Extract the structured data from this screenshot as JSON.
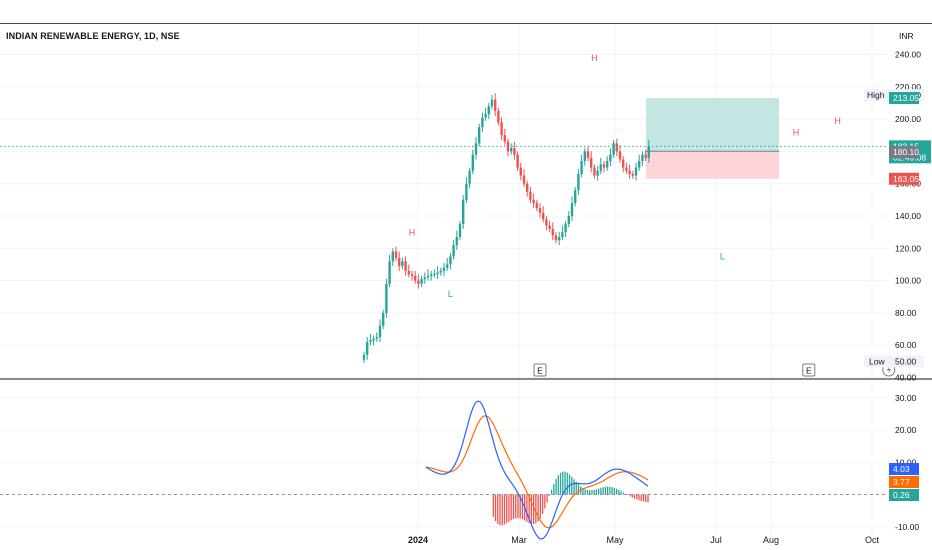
{
  "title": "INDIAN RENEWABLE ENERGY, 1D, NSE",
  "currency": "INR",
  "colors": {
    "up": "#26a69a",
    "down": "#ef5350",
    "macd": "#2962ff",
    "signal": "#ff6d00",
    "grid": "#f0f3fa",
    "profit_zone": "#b2dfdb",
    "loss_zone": "#ffcdd2"
  },
  "chart_data": [
    {
      "type": "candlestick",
      "ylim": [
        40,
        250
      ],
      "yticks": [
        "240.00",
        "220.00",
        "200.00",
        "180.00",
        "160.00",
        "140.00",
        "120.00",
        "100.00",
        "80.00",
        "60.00",
        "40.00"
      ],
      "high": {
        "label": "High",
        "value": "214.80"
      },
      "low": {
        "label": "Low",
        "value": "50.00"
      },
      "last_price": {
        "value": "183.15",
        "countdown": "02:49:08"
      },
      "position": {
        "target": "213.05",
        "entry": "180.10",
        "stop": "163.05"
      },
      "pattern_labels": [
        {
          "text": "H",
          "t": 15,
          "price": 128
        },
        {
          "text": "L",
          "t": 27,
          "price": 90
        },
        {
          "text": "H",
          "t": 72,
          "price": 236
        },
        {
          "text": "L",
          "t": 112,
          "price": 113
        },
        {
          "text": "H",
          "t": 135,
          "price": 190
        },
        {
          "text": "H",
          "t": 148,
          "price": 197
        }
      ],
      "earnings_markers": [
        {
          "text": "E",
          "t": 55
        },
        {
          "text": "E",
          "t": 139
        }
      ],
      "dividend_marker": {
        "t": 164
      },
      "closes": [
        54,
        62,
        63,
        64,
        65,
        72,
        80,
        98,
        112,
        118,
        114,
        109,
        112,
        106,
        104,
        103,
        100,
        98,
        101,
        102,
        103,
        104,
        104,
        105,
        106,
        108,
        110,
        115,
        122,
        127,
        135,
        150,
        160,
        168,
        178,
        185,
        195,
        201,
        203,
        208,
        212,
        205,
        198,
        190,
        186,
        180,
        182,
        178,
        170,
        165,
        160,
        155,
        150,
        148,
        145,
        142,
        138,
        134,
        132,
        128,
        125,
        127,
        130,
        135,
        140,
        148,
        156,
        166,
        174,
        180,
        176,
        170,
        165,
        168,
        172,
        170,
        174,
        178,
        185,
        180,
        175,
        170,
        168,
        166,
        165,
        170,
        174,
        178,
        176,
        183
      ],
      "macd": {
        "yticks": [
          "30.00",
          "20.00",
          "10.00",
          "0.00",
          "-10.00"
        ],
        "macd_value": "4.03",
        "signal_value": "3.77",
        "histogram_value": "0.26"
      },
      "xticks": [
        "2024",
        "Mar",
        "May",
        "Jul",
        "Aug",
        "Oct"
      ]
    }
  ]
}
